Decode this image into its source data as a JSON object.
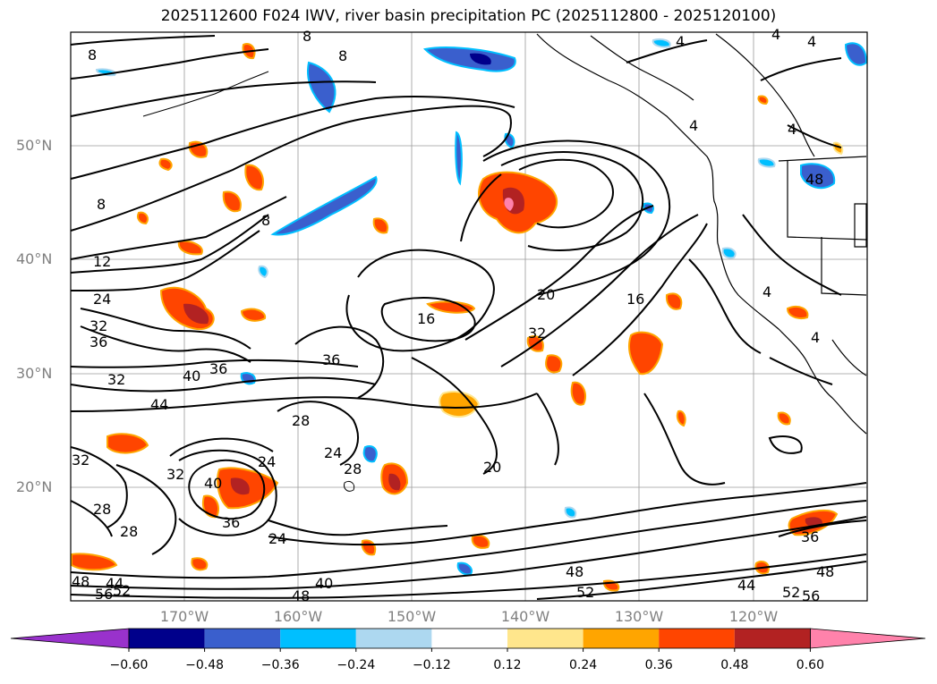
{
  "title": "2025112600 F024 IWV, river basin precipitation PC (2025112800 - 2025120100)",
  "lat_labels": [
    "50°N",
    "40°N",
    "30°N",
    "20°N"
  ],
  "lon_labels": [
    "170°W",
    "160°W",
    "150°W",
    "140°W",
    "130°W",
    "120°W"
  ],
  "colorbar": {
    "tick_labels": [
      "−0.60",
      "−0.48",
      "−0.36",
      "−0.24",
      "−0.12",
      "0.12",
      "0.24",
      "0.36",
      "0.48",
      "0.60"
    ],
    "colors": [
      "#9932cc",
      "#00008b",
      "#3a5fcd",
      "#00bfff",
      "#add8f0",
      "#ffffff",
      "#ffe68c",
      "#ffa500",
      "#ff4500",
      "#b22222",
      "#ff82ab"
    ]
  },
  "contour_labels": [
    "8",
    "8",
    "8",
    "12",
    "24",
    "32",
    "36",
    "40",
    "36",
    "44",
    "32",
    "36",
    "16",
    "20",
    "16",
    "32",
    "28",
    "24",
    "24",
    "28",
    "20",
    "32",
    "40",
    "32",
    "28",
    "28",
    "36",
    "24",
    "40",
    "48",
    "44",
    "56",
    "52",
    "48",
    "52",
    "48",
    "44",
    "52",
    "56",
    "48",
    "4",
    "4",
    "4",
    "4",
    "4",
    "8",
    "4",
    "48",
    "36",
    "4",
    "8"
  ]
}
